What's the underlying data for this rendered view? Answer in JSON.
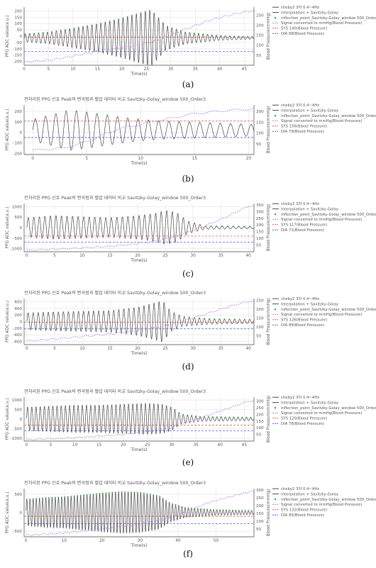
{
  "chart_data": [
    {
      "type": "line",
      "caption": "(a)",
      "title": "",
      "xlabel": "Time(s)",
      "ylabel": "PPG ADC value(a.u.)",
      "y2label": "Blood Pressure(mmHg)",
      "xlim": [
        0,
        47
      ],
      "ylim": [
        -230,
        230
      ],
      "y2lim": [
        0,
        290
      ],
      "xticks": [
        0,
        5,
        10,
        15,
        20,
        25,
        30,
        35,
        40,
        45
      ],
      "yticks": [
        -200,
        -150,
        -100,
        -50,
        0,
        50,
        100,
        150,
        200
      ],
      "y2ticks": [
        50,
        100,
        150,
        200,
        250
      ],
      "legend": [
        "cheby2 3차 0.4~4Hz",
        "Interpolation + Savitzky-Golay",
        "inflection_point_Savitzky-Golay_window 500_Order3",
        "Signal converted to mmHg(Blood Pressure)",
        "SYS 140(Blood Pressure)",
        "DIA 68(Blood Pressure)"
      ],
      "sys": 140,
      "dia": 68,
      "signal": {
        "freq": 1.1,
        "envelope": [
          [
            0,
            30
          ],
          [
            5,
            45
          ],
          [
            10,
            75
          ],
          [
            15,
            110
          ],
          [
            20,
            155
          ],
          [
            24,
            200
          ],
          [
            26,
            220
          ],
          [
            29,
            95
          ],
          [
            33,
            45
          ],
          [
            40,
            18
          ],
          [
            47,
            8
          ]
        ],
        "y_offset": -15
      },
      "pressure": [
        [
          0,
          15
        ],
        [
          5,
          25
        ],
        [
          10,
          45
        ],
        [
          15,
          70
        ],
        [
          18,
          80
        ],
        [
          22,
          95
        ],
        [
          25,
          110
        ],
        [
          28,
          130
        ],
        [
          33,
          180
        ],
        [
          38,
          225
        ],
        [
          42,
          250
        ],
        [
          46,
          270
        ]
      ]
    },
    {
      "type": "line",
      "caption": "(b)",
      "title": "전처리된 PPG 신호 Peak의 변곡점과 혈압 데이터 비교 Savitzky-Golay_window 500_Order3",
      "xlabel": "Time(s)",
      "ylabel": "PPG ADC value(a.u.)",
      "y2label": "Blood Pressure(mmHg)",
      "xlim": [
        -0.8,
        20.5
      ],
      "ylim": [
        -210,
        260
      ],
      "y2lim": [
        0,
        230
      ],
      "xticks": [
        0,
        5,
        10,
        15,
        20
      ],
      "yticks": [
        -200,
        -100,
        0,
        100,
        200
      ],
      "y2ticks": [
        50,
        100,
        150,
        200
      ],
      "legend": [
        "cheby2 3차 0.4~4Hz",
        "Interpolation + Savitzky-Golay",
        "inflection_point_Savitzky-Golay_window 500_Order3",
        "Signal converted to mmHg(Blood Pressure)",
        "SYS 156(Blood Pressure)",
        "DIA 79(Blood Pressure)"
      ],
      "sys": 156,
      "dia": 79,
      "signal": {
        "freq": 1.05,
        "envelope": [
          [
            0,
            100
          ],
          [
            2,
            150
          ],
          [
            3.5,
            190
          ],
          [
            5,
            170
          ],
          [
            7,
            140
          ],
          [
            9,
            110
          ],
          [
            12,
            85
          ],
          [
            16,
            70
          ],
          [
            20,
            55
          ]
        ],
        "y_offset": 20
      },
      "pressure": [
        [
          0,
          20
        ],
        [
          3,
          30
        ],
        [
          5,
          60
        ],
        [
          8,
          120
        ],
        [
          12,
          160
        ],
        [
          15,
          190
        ],
        [
          18,
          205
        ],
        [
          20,
          210
        ]
      ]
    },
    {
      "type": "line",
      "caption": "(c)",
      "title": "전처리된 PPG 신호 Peak의 변곡점과 혈압 데이터 비교 Savitzky-Golay_window 500_Order3",
      "xlabel": "Time(s)",
      "ylabel": "PPG ADC value(a.u.)",
      "y2label": "Blood Pressure(mmHg)",
      "xlim": [
        -0.5,
        41
      ],
      "ylim": [
        -1150,
        1150
      ],
      "y2lim": [
        0,
        360
      ],
      "xticks": [
        0,
        5,
        10,
        15,
        20,
        25,
        30,
        35,
        40
      ],
      "yticks": [
        -1000,
        -500,
        0,
        500,
        1000
      ],
      "y2ticks": [
        50,
        100,
        150,
        200,
        250,
        300,
        350
      ],
      "legend": [
        "cheby2 3차 0.4~4Hz",
        "Interpolation + Savitzky-Golay",
        "inflection_point_Savitzky-Golay_window 500_Order3",
        "Signal converted to mmHg(Blood Pressure)",
        "SYS 117(Blood Pressure)",
        "DIA 71(Blood Pressure)"
      ],
      "sys": 117,
      "dia": 71,
      "signal": {
        "freq": 1.0,
        "envelope": [
          [
            0,
            450
          ],
          [
            5,
            550
          ],
          [
            10,
            500
          ],
          [
            15,
            450
          ],
          [
            20,
            550
          ],
          [
            23,
            650
          ],
          [
            25,
            800
          ],
          [
            27,
            700
          ],
          [
            29,
            300
          ],
          [
            32,
            80
          ],
          [
            41,
            50
          ]
        ],
        "y_offset": 0
      },
      "pressure": [
        [
          0,
          10
        ],
        [
          8,
          25
        ],
        [
          15,
          40
        ],
        [
          20,
          60
        ],
        [
          24,
          85
        ],
        [
          28,
          130
        ],
        [
          32,
          190
        ],
        [
          36,
          260
        ],
        [
          40,
          340
        ]
      ]
    },
    {
      "type": "line",
      "caption": "(d)",
      "title": "전처리된 PPG 신호 Peak의 변곡점과 혈압 데이터 비교 Savitzky-Golay_window 500_Order3",
      "xlabel": "Time(s)",
      "ylabel": "PPG ADC value(a.u.)",
      "y2label": "Blood Pressure(mmHg)",
      "xlim": [
        -0.5,
        41
      ],
      "ylim": [
        -700,
        700
      ],
      "y2lim": [
        0,
        260
      ],
      "xticks": [
        0,
        5,
        10,
        15,
        20,
        25,
        30,
        35,
        40
      ],
      "yticks": [
        -600,
        -400,
        -200,
        0,
        200,
        400,
        600
      ],
      "y2ticks": [
        50,
        100,
        150,
        200,
        250
      ],
      "legend": [
        "cheby2 3차 0.4~4Hz",
        "Interpolation + Savitzky-Golay",
        "inflection_point_Savitzky-Golay_window 500_Order3",
        "Signal converted to mmHg(Blood Pressure)",
        "SYS 126(Blood Pressure)",
        "DIA 89(Blood Pressure)"
      ],
      "sys": 126,
      "dia": 89,
      "signal": {
        "freq": 1.1,
        "envelope": [
          [
            0,
            250
          ],
          [
            5,
            280
          ],
          [
            10,
            300
          ],
          [
            15,
            320
          ],
          [
            20,
            420
          ],
          [
            23,
            550
          ],
          [
            24.5,
            620
          ],
          [
            26,
            300
          ],
          [
            28,
            150
          ],
          [
            33,
            80
          ],
          [
            40,
            60
          ]
        ],
        "y_offset": 0
      },
      "pressure": [
        [
          0,
          20
        ],
        [
          8,
          40
        ],
        [
          15,
          60
        ],
        [
          20,
          80
        ],
        [
          24,
          100
        ],
        [
          28,
          130
        ],
        [
          32,
          170
        ],
        [
          36,
          210
        ],
        [
          40,
          245
        ]
      ]
    },
    {
      "type": "line",
      "caption": "(e)",
      "title": "전처리된 PPG 신호 Peak의 변곡점과 혈압 데이터 비교 Savitzky-Golay_window 500_Order3",
      "xlabel": "Time(s)",
      "ylabel": "PPG ADC value(a.u.)",
      "y2label": "Blood Pressure(mmHg)",
      "xlim": [
        -0.5,
        47
      ],
      "ylim": [
        -1150,
        1150
      ],
      "y2lim": [
        0,
        330
      ],
      "xticks": [
        0,
        5,
        10,
        15,
        20,
        25,
        30,
        35,
        40,
        45
      ],
      "yticks": [
        -1000,
        -500,
        0,
        500,
        1000
      ],
      "y2ticks": [
        50,
        100,
        150,
        200,
        250,
        300
      ],
      "legend": [
        "cheby2 3차 0.4~4Hz",
        "Interpolation + Savitzky-Golay",
        "inflection_point_Savitzky-Golay_window 500_Order3",
        "Signal converted to mmHg(Blood Pressure)",
        "SYS 120(Blood Pressure)",
        "DIA 78(Blood Pressure)"
      ],
      "sys": 120,
      "dia": 78,
      "signal": {
        "freq": 1.15,
        "envelope": [
          [
            0,
            600
          ],
          [
            5,
            650
          ],
          [
            10,
            700
          ],
          [
            15,
            700
          ],
          [
            20,
            750
          ],
          [
            25,
            800
          ],
          [
            28,
            750
          ],
          [
            30,
            600
          ],
          [
            32,
            250
          ],
          [
            36,
            120
          ],
          [
            47,
            80
          ]
        ],
        "y_offset": 0
      },
      "pressure": [
        [
          0,
          10
        ],
        [
          10,
          25
        ],
        [
          20,
          50
        ],
        [
          26,
          75
        ],
        [
          30,
          100
        ],
        [
          34,
          150
        ],
        [
          38,
          200
        ],
        [
          42,
          250
        ],
        [
          46,
          300
        ]
      ]
    },
    {
      "type": "line",
      "caption": "(f)",
      "title": "전처리된 PPG 신호 Peak의 변곡점과 혈압 데이터 비교 Savitzky-Golay_window 500_Order3",
      "xlabel": "Time(s)",
      "ylabel": "PPG ADC value(a.u.)",
      "y2label": "Blood Pressure(mmHg)",
      "xlim": [
        -0.5,
        60
      ],
      "ylim": [
        -650,
        650
      ],
      "y2lim": [
        0,
        310
      ],
      "xticks": [
        0,
        10,
        20,
        30,
        40,
        50
      ],
      "yticks": [
        -500,
        0,
        500
      ],
      "y2ticks": [
        50,
        100,
        150,
        200,
        250,
        300
      ],
      "legend": [
        "cheby2 3차 0.4~4Hz",
        "Interpolation + Savitzky-Golay",
        "inflection_point_Savitzky-Golay_window 500_Order3",
        "Signal converted to mmHg(Blood Pressure)",
        "SYS 132(Blood Pressure)",
        "DIA 85(Blood Pressure)"
      ],
      "sys": 132,
      "dia": 85,
      "signal": {
        "freq": 1.2,
        "envelope": [
          [
            0,
            350
          ],
          [
            5,
            400
          ],
          [
            10,
            420
          ],
          [
            15,
            470
          ],
          [
            20,
            520
          ],
          [
            25,
            560
          ],
          [
            30,
            540
          ],
          [
            35,
            450
          ],
          [
            38,
            250
          ],
          [
            42,
            130
          ],
          [
            50,
            70
          ],
          [
            60,
            50
          ]
        ],
        "y_offset": 0
      },
      "pressure": [
        [
          0,
          10
        ],
        [
          10,
          25
        ],
        [
          20,
          50
        ],
        [
          30,
          80
        ],
        [
          36,
          110
        ],
        [
          42,
          160
        ],
        [
          48,
          220
        ],
        [
          54,
          260
        ],
        [
          59,
          290
        ]
      ]
    }
  ],
  "colors": {
    "signal": "#4a4a4a",
    "pressure": "#b48ce0",
    "sys": "#e06060",
    "dia": "#5a5ae0",
    "inflection": "#3d8a3d",
    "axis": "#444444",
    "grid": "#e3e3e3"
  }
}
